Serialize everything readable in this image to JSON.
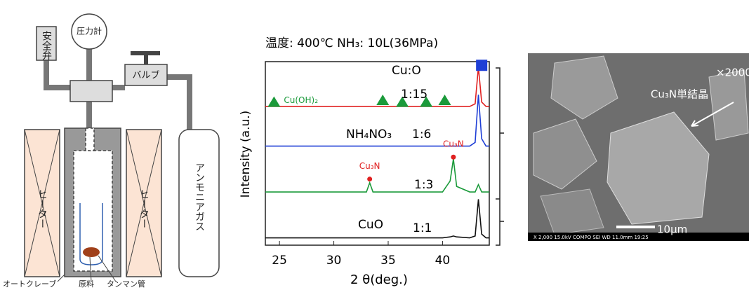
{
  "diagram": {
    "safety_valve": "安全弁",
    "pressure_gauge": "圧力計",
    "valve": "バルブ",
    "gas": "アンモニアガス",
    "heater_left": "ヒーター",
    "heater_right": "ヒーター",
    "autoclave": "オートクレーブ",
    "raw_material": "原料",
    "tube": "タンマン管"
  },
  "chart_data": {
    "type": "line",
    "title": "温度: 400℃  NH₃: 10L(36MPa)",
    "xlabel": "2 θ(deg.)",
    "ylabel": "Intensity (a.u.)",
    "x": [
      23.7,
      25,
      30,
      33.0,
      33.3,
      33.6,
      35,
      40,
      40.7,
      41.0,
      41.3,
      42.5,
      43.0,
      43.3,
      43.6,
      44.0,
      44.3
    ],
    "series": [
      {
        "color": "#111111",
        "values": [
          4,
          4,
          4,
          4,
          4,
          4,
          4,
          4,
          4.5,
          5,
          4.5,
          4,
          5,
          25,
          6,
          4,
          4
        ]
      },
      {
        "color": "#1a9a3a",
        "values": [
          29,
          29,
          29,
          29,
          34,
          29,
          29,
          29,
          35,
          47,
          32,
          29,
          29,
          33,
          29,
          29,
          29
        ]
      },
      {
        "color": "#1f3fd6",
        "values": [
          54,
          54,
          54,
          54,
          54,
          54,
          54,
          54,
          54,
          54,
          54,
          54,
          56,
          82,
          58,
          54,
          54
        ]
      },
      {
        "color": "#e02020",
        "values": [
          75.6,
          75.6,
          75.6,
          75.6,
          75.6,
          75.6,
          75.6,
          75.6,
          75.6,
          75.6,
          75.6,
          75.6,
          77,
          97,
          78,
          75.6,
          75.6
        ]
      }
    ],
    "markers": [
      {
        "shape": "triangle",
        "color": "#1a9a3a",
        "x": 24.5,
        "y": 78,
        "label": "Cu(OH)₂"
      },
      {
        "shape": "triangle",
        "color": "#1a9a3a",
        "x": 34.5,
        "y": 79
      },
      {
        "shape": "triangle",
        "color": "#1a9a3a",
        "x": 36.3,
        "y": 78
      },
      {
        "shape": "triangle",
        "color": "#1a9a3a",
        "x": 38.5,
        "y": 78
      },
      {
        "shape": "triangle",
        "color": "#1a9a3a",
        "x": 40.2,
        "y": 79
      },
      {
        "shape": "dot",
        "color": "#e02020",
        "x": 33.3,
        "y": 36,
        "label": "Cu₃N"
      },
      {
        "shape": "dot",
        "color": "#e02020",
        "x": 41.0,
        "y": 48,
        "label": "Cu₃N"
      },
      {
        "shape": "square",
        "color": "#1f3fd6",
        "x": 43.6,
        "y": 98
      }
    ],
    "annotations": [
      "Cu:O",
      "1:15",
      "NH₄NO₃",
      "1:6",
      "1:3",
      "CuO",
      "1:1"
    ],
    "xlim": [
      23.7,
      44.3
    ],
    "ylim": [
      0,
      100
    ],
    "xticks": [
      25,
      30,
      35,
      40
    ]
  },
  "image": {
    "magnification": "×2000",
    "caption": "Cu₃N単結晶",
    "scale": "10μm",
    "footer": "X 2,000    15.0kV COMPO    SEI    WD 11.0mm 19:25"
  }
}
